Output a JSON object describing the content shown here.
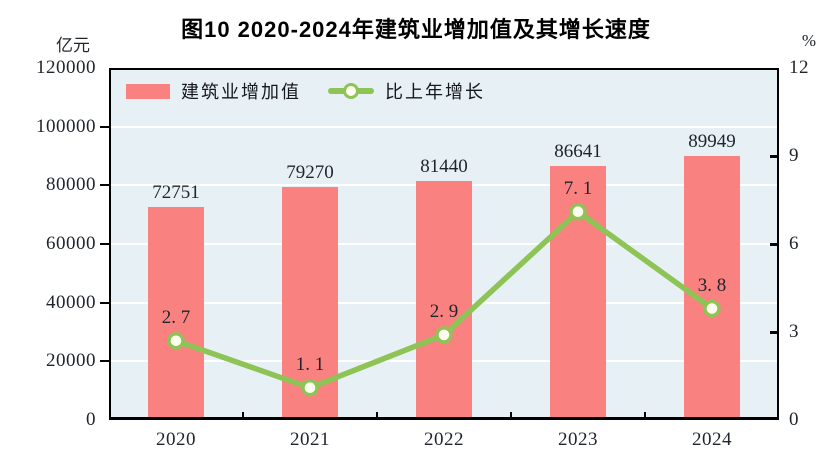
{
  "chart_data": {
    "type": "bar+line",
    "title": "图10  2020-2024年建筑业增加值及其增长速度",
    "categories": [
      "2020",
      "2021",
      "2022",
      "2023",
      "2024"
    ],
    "left_axis": {
      "unit": "亿元",
      "min": 0,
      "max": 120000,
      "step": 20000,
      "tick_labels": [
        "0",
        "20000",
        "40000",
        "60000",
        "80000",
        "100000",
        "120000"
      ]
    },
    "right_axis": {
      "unit": "%",
      "min": 0,
      "max": 12,
      "step": 3,
      "tick_labels": [
        "0",
        "3",
        "6",
        "9",
        "12"
      ]
    },
    "series": [
      {
        "name": "建筑业增加值",
        "type": "bar",
        "axis": "left",
        "color": "#f98280",
        "values": [
          72751,
          79270,
          81440,
          86641,
          89949
        ],
        "labels": [
          "72751",
          "79270",
          "81440",
          "86641",
          "89949"
        ]
      },
      {
        "name": "比上年增长",
        "type": "line",
        "axis": "right",
        "color": "#8ec356",
        "marker_fill": "#fffdf0",
        "values": [
          2.7,
          1.1,
          2.9,
          7.1,
          3.8
        ],
        "labels": [
          "2. 7",
          "1. 1",
          "2. 9",
          "7. 1",
          "3. 8"
        ]
      }
    ],
    "style": {
      "plot_bg": "#e7f0f4",
      "gridline_color": "#ffffff",
      "axis_color": "#000000",
      "text_color": "#1f242b",
      "grid": "on",
      "legend_position": "top-left-inside"
    }
  }
}
